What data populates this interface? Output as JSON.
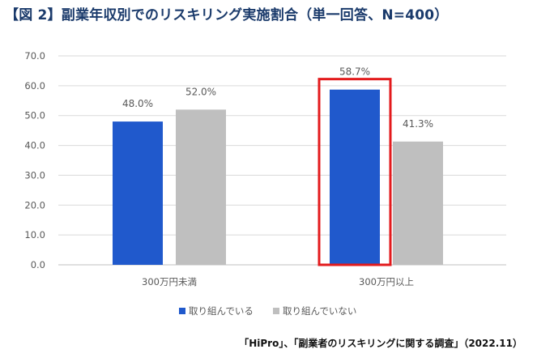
{
  "colors": {
    "title": "#1a3a6b",
    "series1": "#2059cc",
    "series2": "#bfbfbf",
    "highlight": "#e31a1c",
    "grid": "#d9d9d9"
  },
  "chart_data": {
    "type": "bar",
    "title": "【図 2】副業年収別でのリスキリング実施割合（単一回答、N=400）",
    "categories": [
      "300万円未満",
      "300万円以上"
    ],
    "series": [
      {
        "name": "取り組んでいる",
        "values": [
          48.0,
          58.7
        ]
      },
      {
        "name": "取り組んでいない",
        "values": [
          52.0,
          41.3
        ]
      }
    ],
    "data_labels": [
      [
        "48.0%",
        "52.0%"
      ],
      [
        "58.7%",
        "41.3%"
      ]
    ],
    "y_ticks": [
      "0.0",
      "10.0",
      "20.0",
      "30.0",
      "40.0",
      "50.0",
      "60.0",
      "70.0"
    ],
    "ylim": [
      0,
      70
    ],
    "grid": true,
    "legend_position": "bottom",
    "highlight": {
      "category_index": 1,
      "series_index": 0
    },
    "xlabel": "",
    "ylabel": ""
  },
  "source": "「HiPro」、「副業者のリスキリングに関する調査」（2022.11）"
}
